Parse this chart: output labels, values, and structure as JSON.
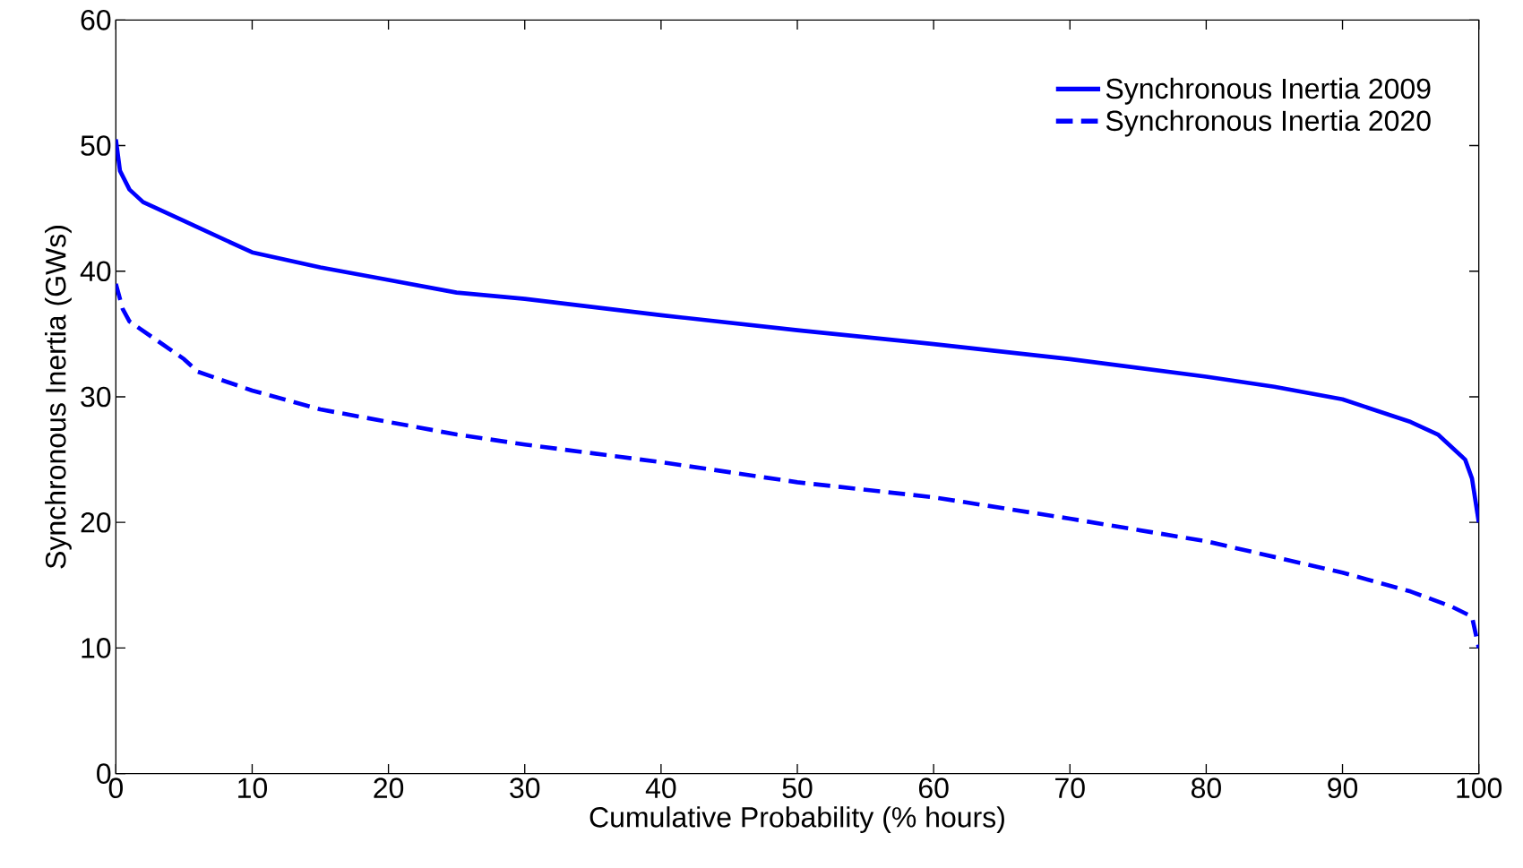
{
  "chart_data": {
    "type": "line",
    "xlabel": "Cumulative Probability (% hours)",
    "ylabel": "Synchronous Inertia (GWs)",
    "xlim": [
      0,
      100
    ],
    "ylim": [
      0,
      60
    ],
    "xticks": [
      0,
      10,
      20,
      30,
      40,
      50,
      60,
      70,
      80,
      90,
      100
    ],
    "yticks": [
      0,
      10,
      20,
      30,
      40,
      50,
      60
    ],
    "grid": false,
    "legend": "top right",
    "marker": "none",
    "series": [
      {
        "name": "Synchronous Inertia 2009",
        "color": "#0000ff",
        "line_style": "solid",
        "x": [
          0,
          0.3,
          1,
          2,
          5,
          10,
          15,
          20,
          25,
          30,
          40,
          50,
          60,
          70,
          80,
          85,
          90,
          95,
          97,
          99,
          99.5,
          100
        ],
        "values": [
          50.5,
          48,
          46.5,
          45.5,
          44,
          41.5,
          40.3,
          39.3,
          38.3,
          37.8,
          36.5,
          35.3,
          34.2,
          33,
          31.6,
          30.8,
          29.8,
          28,
          27,
          25,
          23.5,
          20
        ]
      },
      {
        "name": "Synchronous Inertia 2020",
        "color": "#0000ff",
        "line_style": "dashed",
        "x": [
          0,
          0.5,
          1,
          3,
          5,
          6,
          10,
          15,
          20,
          25,
          30,
          40,
          50,
          60,
          70,
          80,
          90,
          95,
          98,
          99.5,
          100
        ],
        "values": [
          39,
          37,
          36,
          34.5,
          33,
          32,
          30.5,
          29,
          28,
          27,
          26.2,
          24.8,
          23.2,
          22,
          20.3,
          18.5,
          16,
          14.5,
          13.3,
          12.5,
          10
        ]
      }
    ]
  }
}
